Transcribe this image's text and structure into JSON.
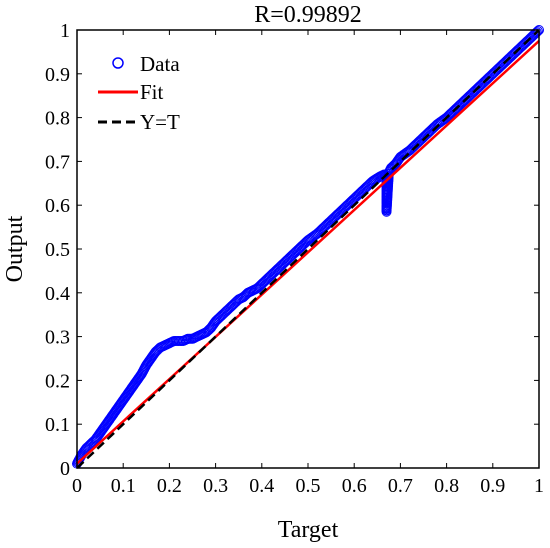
{
  "chart_data": {
    "type": "scatter",
    "title": "R=0.99892",
    "xlabel": "Target",
    "ylabel": "Output",
    "xlim": [
      0,
      1
    ],
    "ylim": [
      0,
      1
    ],
    "xticks": [
      "0",
      "0.1",
      "0.2",
      "0.3",
      "0.4",
      "0.5",
      "0.6",
      "0.7",
      "0.8",
      "0.9",
      "1"
    ],
    "yticks": [
      "0",
      "0.1",
      "0.2",
      "0.3",
      "0.4",
      "0.5",
      "0.6",
      "0.7",
      "0.8",
      "0.9",
      "1"
    ],
    "grid": false,
    "legend_position": "top-left",
    "legend": [
      "Data",
      "Fit",
      "Y=T"
    ],
    "series": [
      {
        "name": "Data",
        "kind": "scatter",
        "marker": "open-circle",
        "color": "#0000ff",
        "x": [
          0,
          0.005,
          0.01,
          0.02,
          0.03,
          0.04,
          0.05,
          0.06,
          0.07,
          0.08,
          0.09,
          0.1,
          0.11,
          0.12,
          0.13,
          0.14,
          0.15,
          0.16,
          0.17,
          0.18,
          0.19,
          0.2,
          0.21,
          0.22,
          0.23,
          0.24,
          0.25,
          0.26,
          0.27,
          0.28,
          0.29,
          0.3,
          0.31,
          0.32,
          0.33,
          0.34,
          0.35,
          0.36,
          0.37,
          0.38,
          0.39,
          0.4,
          0.42,
          0.44,
          0.46,
          0.48,
          0.5,
          0.52,
          0.54,
          0.56,
          0.58,
          0.6,
          0.62,
          0.64,
          0.655,
          0.665,
          0.67,
          0.67,
          0.67,
          0.67,
          0.675,
          0.68,
          0.69,
          0.7,
          0.72,
          0.74,
          0.76,
          0.78,
          0.8,
          0.82,
          0.84,
          0.86,
          0.88,
          0.9,
          0.92,
          0.94,
          0.96,
          0.98,
          0.99,
          1.0
        ],
        "y": [
          0.01,
          0.02,
          0.03,
          0.045,
          0.055,
          0.065,
          0.08,
          0.095,
          0.11,
          0.125,
          0.14,
          0.155,
          0.17,
          0.185,
          0.2,
          0.215,
          0.235,
          0.25,
          0.265,
          0.275,
          0.28,
          0.285,
          0.29,
          0.29,
          0.29,
          0.295,
          0.295,
          0.3,
          0.305,
          0.31,
          0.32,
          0.335,
          0.345,
          0.355,
          0.365,
          0.375,
          0.385,
          0.39,
          0.4,
          0.405,
          0.41,
          0.42,
          0.44,
          0.46,
          0.48,
          0.5,
          0.52,
          0.535,
          0.555,
          0.575,
          0.595,
          0.615,
          0.635,
          0.655,
          0.665,
          0.67,
          0.66,
          0.63,
          0.6,
          0.585,
          0.675,
          0.685,
          0.695,
          0.71,
          0.725,
          0.745,
          0.765,
          0.785,
          0.8,
          0.82,
          0.84,
          0.86,
          0.88,
          0.9,
          0.92,
          0.94,
          0.96,
          0.98,
          0.99,
          1.0
        ]
      },
      {
        "name": "Fit",
        "kind": "line",
        "color": "#ff0000",
        "x": [
          0,
          1
        ],
        "y": [
          0.01,
          0.975
        ]
      },
      {
        "name": "Y=T",
        "kind": "line",
        "style": "dashed",
        "color": "#000000",
        "x": [
          0,
          1
        ],
        "y": [
          0,
          1
        ]
      }
    ]
  }
}
